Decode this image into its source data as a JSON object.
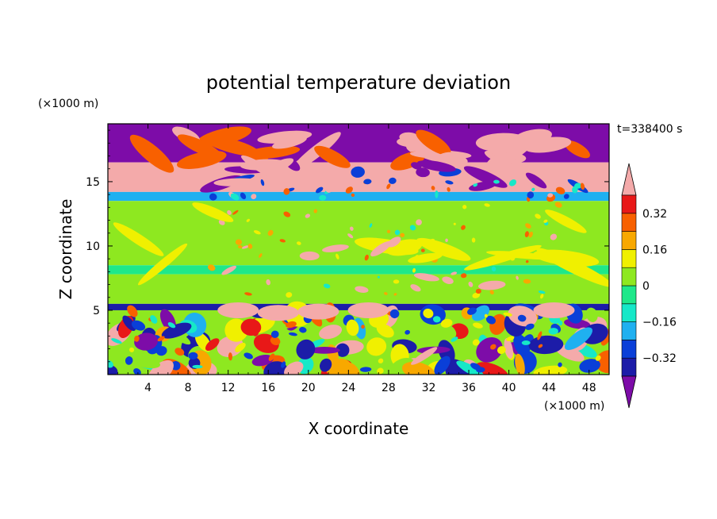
{
  "chart_data": {
    "type": "heatmap",
    "title": "potential temperature deviation",
    "xlabel": "X coordinate",
    "ylabel": "Z coordinate",
    "x_unit": "(×1000 m)",
    "y_unit": "(×1000 m)",
    "time_label": "t=338400 s",
    "xlim": [
      0,
      50
    ],
    "ylim": [
      0,
      19.5
    ],
    "x_ticks": [
      4,
      8,
      12,
      16,
      20,
      24,
      28,
      32,
      36,
      40,
      44,
      48
    ],
    "y_ticks": [
      5,
      10,
      15
    ],
    "colorbar": {
      "ticks": [
        "0.32",
        "0.16",
        "0",
        "−0.16",
        "−0.32"
      ],
      "levels": [
        -0.4,
        -0.32,
        -0.24,
        -0.16,
        -0.08,
        0,
        0.08,
        0.16,
        0.24,
        0.32,
        0.4
      ],
      "colors": [
        "#7d0ca8",
        "#1c1ca8",
        "#0a3fd8",
        "#1fb0f0",
        "#16e8c8",
        "#1ee88a",
        "#8ee820",
        "#f0f000",
        "#f8a800",
        "#f86000",
        "#e81818",
        "#f4aaaa"
      ]
    },
    "bands": [
      {
        "z_range": [
          16.5,
          19.5
        ],
        "dominant_value": -0.45,
        "description_color": "purple"
      },
      {
        "z_range": [
          14.2,
          16.5
        ],
        "dominant_value": 0.45,
        "description_color": "pink"
      },
      {
        "z_range": [
          13.5,
          14.2
        ],
        "dominant_value": -0.2,
        "description_color": "blue"
      },
      {
        "z_range": [
          8.5,
          13.5
        ],
        "dominant_value": 0.02,
        "description_color": "green"
      },
      {
        "z_range": [
          7.8,
          8.5
        ],
        "dominant_value": -0.05,
        "description_color": "cyan"
      },
      {
        "z_range": [
          5.5,
          7.8
        ],
        "dominant_value": 0.02,
        "description_color": "green"
      },
      {
        "z_range": [
          5.0,
          5.5
        ],
        "dominant_value": -0.35,
        "description_color": "navy"
      },
      {
        "z_range": [
          0,
          5.0
        ],
        "dominant_value": 0.0,
        "description_color": "mixed"
      }
    ]
  }
}
